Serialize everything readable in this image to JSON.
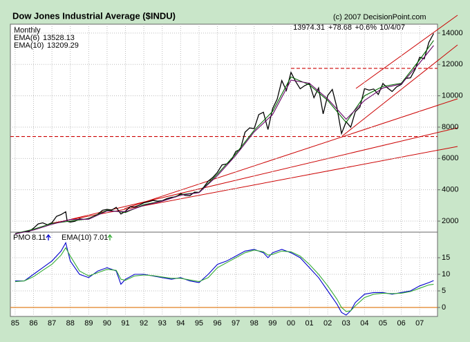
{
  "chart_data": [
    {
      "type": "line",
      "title": "Dow Jones Industrial Average ($INDU)",
      "subtitle": "Monthly",
      "source": "(c) 2007 DecisionPoint.com",
      "quote": {
        "last": 13974.31,
        "change": "+78.68",
        "pct": "+0.6%",
        "date": "10/4/07"
      },
      "xlim": [
        1984.74,
        2007.97
      ],
      "ylim": [
        1340,
        14570
      ],
      "yticks": [
        2000,
        4000,
        6000,
        8000,
        10000,
        12000,
        14000
      ],
      "grid": true,
      "xticks": [
        {
          "value": 1985,
          "label": "85"
        },
        {
          "value": 1986,
          "label": "86"
        },
        {
          "value": 1987,
          "label": "87"
        },
        {
          "value": 1988,
          "label": "88"
        },
        {
          "value": 1989,
          "label": "89"
        },
        {
          "value": 1990,
          "label": "90"
        },
        {
          "value": 1991,
          "label": "91"
        },
        {
          "value": 1992,
          "label": "92"
        },
        {
          "value": 1993,
          "label": "93"
        },
        {
          "value": 1994,
          "label": "94"
        },
        {
          "value": 1995,
          "label": "95"
        },
        {
          "value": 1996,
          "label": "96"
        },
        {
          "value": 1997,
          "label": "97"
        },
        {
          "value": 1998,
          "label": "98"
        },
        {
          "value": 1999,
          "label": "99"
        },
        {
          "value": 2000,
          "label": "00"
        },
        {
          "value": 2001,
          "label": "01"
        },
        {
          "value": 2002,
          "label": "02"
        },
        {
          "value": 2003,
          "label": "03"
        },
        {
          "value": 2004,
          "label": "04"
        },
        {
          "value": 2005,
          "label": "05"
        },
        {
          "value": 2006,
          "label": "06"
        },
        {
          "value": 2007,
          "label": "07"
        }
      ],
      "hlines": [
        {
          "value": 11750,
          "x0": 2000,
          "color": "#cc0000"
        },
        {
          "value": 7400,
          "color": "#cc0000"
        }
      ],
      "series": [
        {
          "name": "INDU",
          "color": "#000000",
          "x": [
            1985,
            1985.25,
            1985.5,
            1985.75,
            1986,
            1986.25,
            1986.5,
            1986.75,
            1987,
            1987.25,
            1987.5,
            1987.75,
            1987.83,
            1988,
            1988.25,
            1988.5,
            1988.75,
            1989,
            1989.25,
            1989.5,
            1989.75,
            1990,
            1990.25,
            1990.5,
            1990.75,
            1991,
            1991.25,
            1991.5,
            1991.75,
            1992,
            1992.25,
            1992.5,
            1992.75,
            1993,
            1993.25,
            1993.5,
            1993.75,
            1994,
            1994.25,
            1994.5,
            1994.75,
            1995,
            1995.25,
            1995.5,
            1995.75,
            1996,
            1996.25,
            1996.5,
            1996.75,
            1997,
            1997.25,
            1997.5,
            1997.75,
            1998,
            1998.25,
            1998.5,
            1998.75,
            1999,
            1999.25,
            1999.5,
            1999.75,
            2000,
            2000.25,
            2000.5,
            2000.75,
            2001,
            2001.25,
            2001.5,
            2001.75,
            2002,
            2002.25,
            2002.5,
            2002.75,
            2003,
            2003.25,
            2003.5,
            2003.75,
            2004,
            2004.25,
            2004.5,
            2004.75,
            2005,
            2005.25,
            2005.5,
            2005.75,
            2006,
            2006.25,
            2006.5,
            2006.75,
            2007,
            2007.25,
            2007.5,
            2007.76
          ],
          "values": [
            1212,
            1267,
            1336,
            1329,
            1547,
            1819,
            1893,
            1768,
            1896,
            2305,
            2419,
            2596,
            1994,
            1939,
            1989,
            2141,
            2113,
            2169,
            2294,
            2440,
            2693,
            2753,
            2707,
            2880,
            2453,
            2634,
            2914,
            2907,
            3017,
            3169,
            3236,
            3319,
            3272,
            3301,
            3436,
            3516,
            3555,
            3754,
            3636,
            3625,
            3843,
            3834,
            4158,
            4556,
            4789,
            5117,
            5587,
            5655,
            5882,
            6448,
            6584,
            7673,
            7945,
            7908,
            8800,
            8952,
            7843,
            9181,
            9786,
            10971,
            10337,
            11497,
            10922,
            10448,
            10651,
            10788,
            9879,
            10502,
            8848,
            10022,
            10404,
            9243,
            7592,
            8342,
            7992,
            8985,
            9275,
            10454,
            10358,
            10435,
            10080,
            10783,
            10504,
            10275,
            10569,
            10718,
            11109,
            11150,
            11679,
            12463,
            12354,
            13408,
            13974
          ]
        },
        {
          "name": "EMA(6)",
          "legend_value": 13528.13,
          "color": "#006600",
          "x": [
            1985,
            1986,
            1987,
            1988,
            1989,
            1990,
            1991,
            1992,
            1993,
            1994,
            1995,
            1996,
            1997,
            1998,
            1999,
            2000,
            2001,
            2002,
            2003,
            2004,
            2005,
            2006,
            2007,
            2007.76
          ],
          "values": [
            1200,
            1480,
            1850,
            2000,
            2150,
            2700,
            2550,
            3050,
            3280,
            3690,
            3830,
            5000,
            6300,
            7800,
            9000,
            11200,
            10700,
            9700,
            8300,
            10000,
            10600,
            10800,
            12300,
            13528.13
          ]
        },
        {
          "name": "EMA(10)",
          "legend_value": 13209.29,
          "color": "#660066",
          "x": [
            1985,
            1986,
            1987,
            1988,
            1989,
            1990,
            1991,
            1992,
            1993,
            1994,
            1995,
            1996,
            1997,
            1998,
            1999,
            2000,
            2001,
            2002,
            2003,
            2004,
            2005,
            2006,
            2007,
            2007.76
          ],
          "values": [
            1180,
            1430,
            1800,
            2100,
            2120,
            2650,
            2600,
            3000,
            3270,
            3650,
            3820,
            4900,
            6200,
            7700,
            8800,
            11000,
            10800,
            9800,
            8500,
            9700,
            10500,
            10750,
            12100,
            13209.29
          ]
        }
      ]
    },
    {
      "type": "line",
      "xlim": [
        1984.74,
        2007.97
      ],
      "ylim": [
        -2.7,
        22.5
      ],
      "yticks": [
        0,
        5,
        10,
        15
      ],
      "grid": true,
      "hlines": [
        {
          "value": 0,
          "color": "#e08020"
        }
      ],
      "series": [
        {
          "name": "PMO",
          "legend_value": 8.11,
          "color": "#0000cc",
          "x": [
            1985,
            1985.5,
            1986,
            1986.5,
            1987,
            1987.5,
            1987.75,
            1988,
            1988.5,
            1989,
            1989.5,
            1990,
            1990.5,
            1990.75,
            1991,
            1991.5,
            1992,
            1992.5,
            1993,
            1993.5,
            1994,
            1994.5,
            1995,
            1995.5,
            1996,
            1996.5,
            1997,
            1997.5,
            1998,
            1998.5,
            1998.75,
            1999,
            1999.5,
            2000,
            2000.5,
            2001,
            2001.5,
            2002,
            2002.5,
            2002.75,
            2003,
            2003.25,
            2003.5,
            2004,
            2004.5,
            2005,
            2005.5,
            2006,
            2006.5,
            2007,
            2007.5,
            2007.76
          ],
          "values": [
            8,
            8,
            10,
            12,
            14,
            17,
            19.5,
            14,
            10,
            9,
            11,
            12,
            11,
            7,
            8.5,
            10,
            10,
            9.5,
            9,
            8.5,
            9,
            8,
            7.5,
            10,
            13,
            14,
            15.5,
            17,
            17.5,
            16.5,
            15,
            16.5,
            17.5,
            16.5,
            15,
            12,
            9,
            5,
            1,
            -1.5,
            -2.3,
            -1,
            1.5,
            4,
            4.5,
            4.5,
            4,
            4.5,
            5,
            6.5,
            7.5,
            8.11
          ]
        },
        {
          "name": "EMA(10)",
          "legend_value": 7.01,
          "color": "#33aa33",
          "x": [
            1985,
            1985.5,
            1986,
            1986.5,
            1987,
            1987.5,
            1987.75,
            1988,
            1988.5,
            1989,
            1989.5,
            1990,
            1990.5,
            1990.75,
            1991,
            1991.5,
            1992,
            1992.5,
            1993,
            1993.5,
            1994,
            1994.5,
            1995,
            1995.5,
            1996,
            1996.5,
            1997,
            1997.5,
            1998,
            1998.5,
            1998.75,
            1999,
            1999.5,
            2000,
            2000.5,
            2001,
            2001.5,
            2002,
            2002.5,
            2002.75,
            2003,
            2003.25,
            2003.5,
            2004,
            2004.5,
            2005,
            2005.5,
            2006,
            2006.5,
            2007,
            2007.5,
            2007.76
          ],
          "values": [
            7.8,
            8,
            9.3,
            11.2,
            13,
            15.8,
            18,
            15.5,
            11,
            9.5,
            10.5,
            11.5,
            11.2,
            8.5,
            8.2,
            9.5,
            9.8,
            9.6,
            9.2,
            8.8,
            8.8,
            8.3,
            7.8,
            9,
            12,
            13.5,
            15,
            16.5,
            17.3,
            16.8,
            15.8,
            16,
            17,
            16.8,
            15.5,
            13,
            10,
            6.5,
            2.5,
            0,
            -1.2,
            -1,
            0.5,
            3,
            4,
            4.3,
            4.2,
            4.3,
            4.8,
            5.8,
            6.8,
            7.01
          ]
        }
      ]
    }
  ]
}
